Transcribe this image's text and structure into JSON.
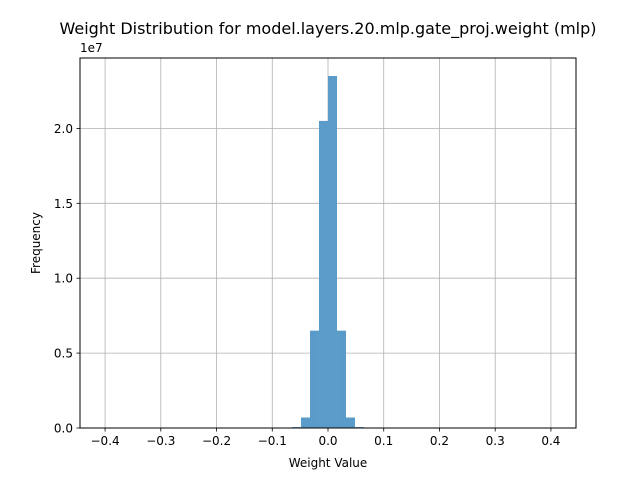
{
  "chart_data": {
    "type": "bar",
    "title": "Weight Distribution for model.layers.20.mlp.gate_proj.weight (mlp)",
    "xlabel": "Weight Value",
    "ylabel": "Frequency",
    "y_scale_label": "1e7",
    "xlim": [
      -0.445,
      0.445
    ],
    "ylim": [
      0,
      24700000
    ],
    "grid": true,
    "bar_color": "#5b9bc9",
    "x_ticks": [
      {
        "value": -0.4,
        "label": "−0.4"
      },
      {
        "value": -0.3,
        "label": "−0.3"
      },
      {
        "value": -0.2,
        "label": "−0.2"
      },
      {
        "value": -0.1,
        "label": "−0.1"
      },
      {
        "value": 0.0,
        "label": "0.0"
      },
      {
        "value": 0.1,
        "label": "0.1"
      },
      {
        "value": 0.2,
        "label": "0.2"
      },
      {
        "value": 0.3,
        "label": "0.3"
      },
      {
        "value": 0.4,
        "label": "0.4"
      }
    ],
    "y_ticks": [
      {
        "value": 0,
        "label": "0.0"
      },
      {
        "value": 5000000,
        "label": "0.5"
      },
      {
        "value": 10000000,
        "label": "1.0"
      },
      {
        "value": 15000000,
        "label": "1.5"
      },
      {
        "value": 20000000,
        "label": "2.0"
      }
    ],
    "bins": [
      {
        "x0": -0.0646,
        "x1": -0.0485,
        "value": 60000
      },
      {
        "x0": -0.0485,
        "x1": -0.0323,
        "value": 700000
      },
      {
        "x0": -0.0323,
        "x1": -0.0162,
        "value": 6500000
      },
      {
        "x0": -0.0162,
        "x1": 0.0,
        "value": 20500000
      },
      {
        "x0": 0.0,
        "x1": 0.0162,
        "value": 23500000
      },
      {
        "x0": 0.0162,
        "x1": 0.0323,
        "value": 6500000
      },
      {
        "x0": 0.0323,
        "x1": 0.0485,
        "value": 700000
      },
      {
        "x0": 0.0485,
        "x1": 0.0646,
        "value": 60000
      }
    ]
  }
}
